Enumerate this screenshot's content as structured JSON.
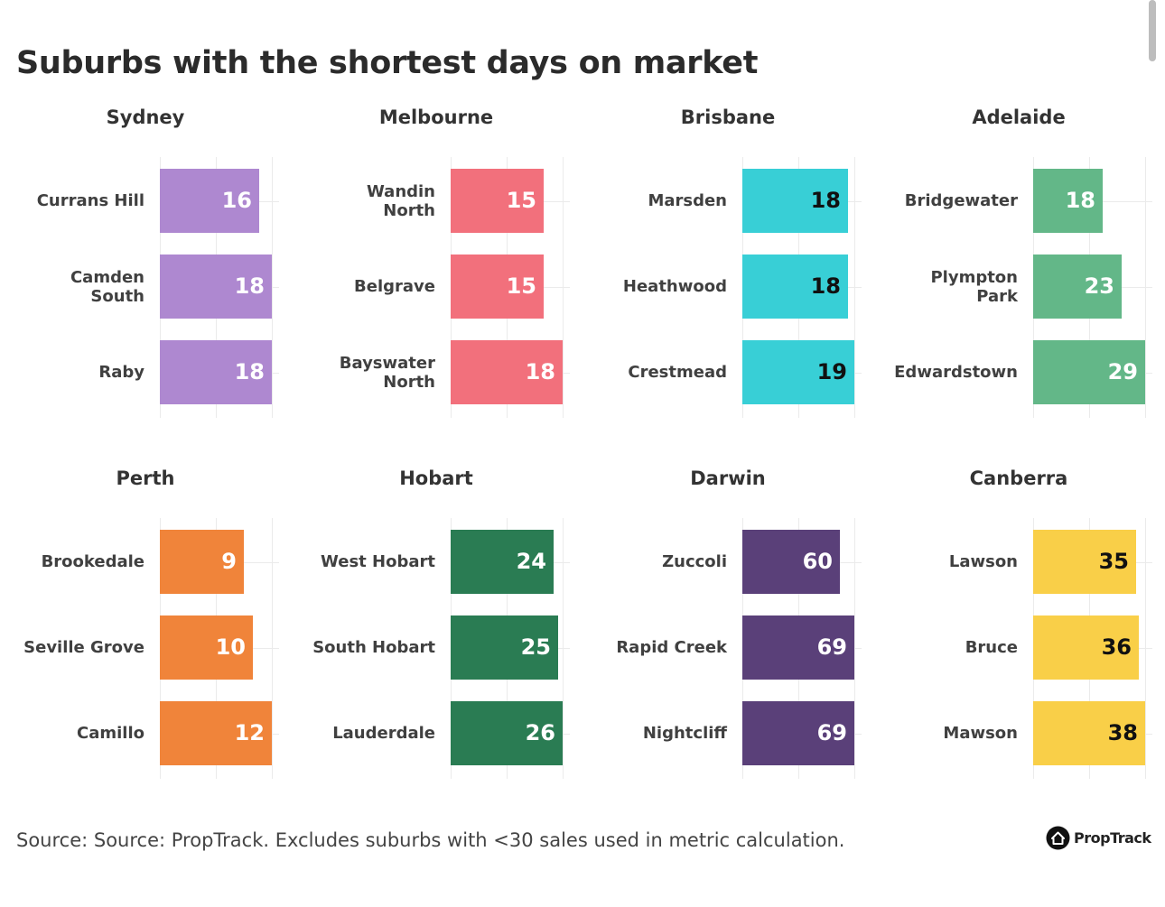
{
  "title": "Suburbs with the shortest days on market",
  "footer": "Source: Source: PropTrack. Excludes suburbs with <30 sales used in metric calculation.",
  "brand": {
    "name": "PropTrack",
    "icon": "house-logo-icon"
  },
  "chart_data": [
    {
      "type": "bar",
      "title": "Sydney",
      "color": "#ae88d0",
      "text_color": "#ffffff",
      "categories": [
        "Currans Hill",
        "Camden\nSouth",
        "Raby"
      ],
      "values": [
        16,
        18,
        18
      ]
    },
    {
      "type": "bar",
      "title": "Melbourne",
      "color": "#f2707c",
      "text_color": "#ffffff",
      "categories": [
        "Wandin\nNorth",
        "Belgrave",
        "Bayswater\nNorth"
      ],
      "values": [
        15,
        15,
        18
      ]
    },
    {
      "type": "bar",
      "title": "Brisbane",
      "color": "#38cfd6",
      "text_color": "#111111",
      "categories": [
        "Marsden",
        "Heathwood",
        "Crestmead"
      ],
      "values": [
        18,
        18,
        19
      ]
    },
    {
      "type": "bar",
      "title": "Adelaide",
      "color": "#63b788",
      "text_color": "#ffffff",
      "categories": [
        "Bridgewater",
        "Plympton\nPark",
        "Edwardstown"
      ],
      "values": [
        18,
        23,
        29
      ]
    },
    {
      "type": "bar",
      "title": "Perth",
      "color": "#f0843a",
      "text_color": "#ffffff",
      "categories": [
        "Brookedale",
        "Seville Grove",
        "Camillo"
      ],
      "values": [
        9,
        10,
        12
      ]
    },
    {
      "type": "bar",
      "title": "Hobart",
      "color": "#2a7c53",
      "text_color": "#ffffff",
      "categories": [
        "West Hobart",
        "South Hobart",
        "Lauderdale"
      ],
      "values": [
        24,
        25,
        26
      ]
    },
    {
      "type": "bar",
      "title": "Darwin",
      "color": "#5a4079",
      "text_color": "#ffffff",
      "categories": [
        "Zuccoli",
        "Rapid Creek",
        "Nightcliff"
      ],
      "values": [
        60,
        69,
        69
      ]
    },
    {
      "type": "bar",
      "title": "Canberra",
      "color": "#f9cf48",
      "text_color": "#111111",
      "categories": [
        "Lawson",
        "Bruce",
        "Mawson"
      ],
      "values": [
        35,
        36,
        38
      ]
    }
  ]
}
